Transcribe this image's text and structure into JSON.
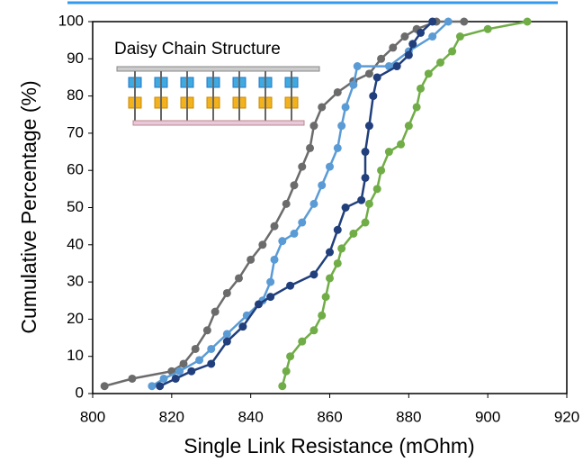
{
  "chart_data": {
    "type": "line",
    "inset_label": "Daisy Chain Structure",
    "x_label": "Single Link Resistance (mOhm)",
    "y_label": "Cumulative Percentage (%)",
    "xlim": [
      800,
      920
    ],
    "xticks": [
      800,
      820,
      840,
      860,
      880,
      900,
      920
    ],
    "ylim": [
      0,
      100
    ],
    "yticks": [
      0,
      10,
      20,
      30,
      40,
      50,
      60,
      70,
      80,
      90,
      100
    ],
    "grid": false,
    "series": [
      {
        "color": "#6b6b6b",
        "x": [
          803,
          810,
          820,
          823,
          826,
          829,
          831,
          834,
          837,
          840,
          843,
          846,
          849,
          851,
          853,
          855,
          856,
          858,
          862,
          866,
          870,
          873,
          876,
          879,
          882,
          887,
          894
        ],
        "values": [
          2,
          4,
          6,
          8,
          12,
          17,
          22,
          27,
          31,
          36,
          40,
          45,
          51,
          56,
          61,
          66,
          72,
          77,
          81,
          84,
          86,
          90,
          93,
          96,
          98,
          100,
          100
        ]
      },
      {
        "color": "#5b9bd5",
        "x": [
          815,
          818,
          822,
          827,
          830,
          834,
          839,
          843,
          845,
          846,
          848,
          851,
          853,
          856,
          858,
          860,
          862,
          863,
          864,
          866,
          867,
          875,
          880,
          886,
          890
        ],
        "values": [
          2,
          4,
          6,
          9,
          12,
          16,
          21,
          25,
          30,
          36,
          41,
          43,
          46,
          51,
          56,
          61,
          66,
          72,
          77,
          83,
          88,
          88,
          92,
          96,
          100
        ]
      },
      {
        "color": "#203f7c",
        "x": [
          817,
          821,
          825,
          830,
          834,
          838,
          842,
          845,
          850,
          856,
          860,
          862,
          864,
          868,
          869,
          869,
          870,
          871,
          872,
          877,
          880,
          881,
          883,
          886
        ],
        "values": [
          2,
          4,
          6,
          8,
          14,
          18,
          24,
          26,
          29,
          32,
          38,
          44,
          50,
          52,
          58,
          65,
          72,
          80,
          85,
          88,
          91,
          94,
          97,
          100
        ]
      },
      {
        "color": "#70ad47",
        "x": [
          848,
          849,
          850,
          853,
          856,
          858,
          859,
          860,
          862,
          863,
          866,
          869,
          870,
          872,
          873,
          875,
          878,
          880,
          882,
          883,
          885,
          888,
          891,
          893,
          900,
          910
        ],
        "values": [
          2,
          6,
          10,
          14,
          17,
          21,
          26,
          31,
          35,
          39,
          43,
          46,
          51,
          55,
          60,
          65,
          67,
          72,
          77,
          82,
          86,
          89,
          92,
          96,
          98,
          100
        ]
      }
    ]
  }
}
